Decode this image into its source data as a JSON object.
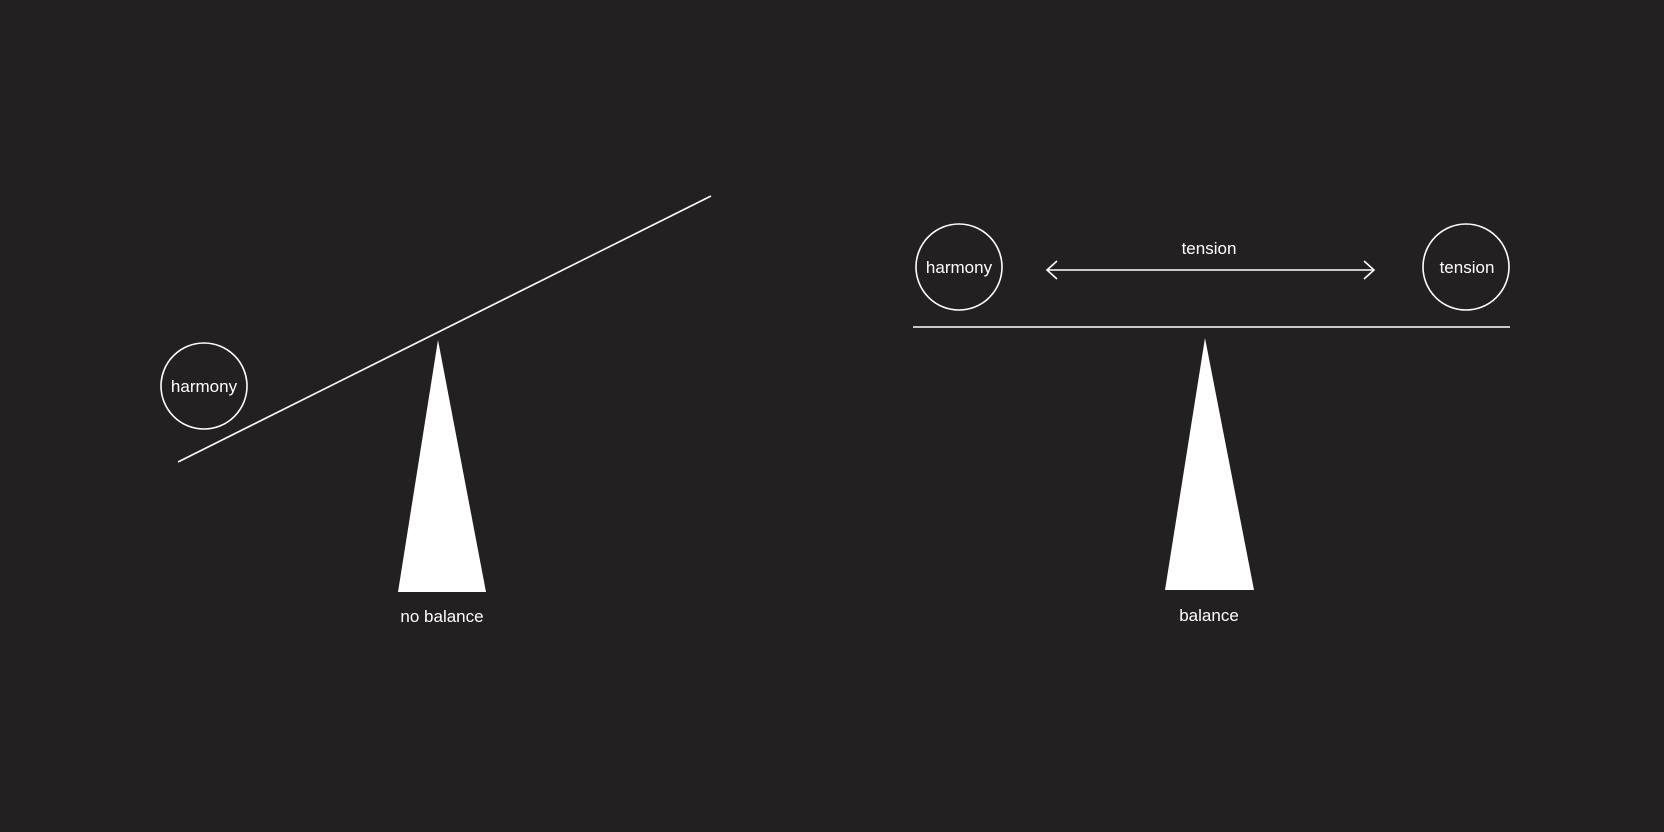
{
  "colors": {
    "background": "#232021",
    "foreground": "#ffffff"
  },
  "left_diagram": {
    "ball_label": "harmony",
    "fulcrum_label": "no balance"
  },
  "right_diagram": {
    "left_ball_label": "harmony",
    "right_ball_label": "tension",
    "arrow_label": "tension",
    "fulcrum_label": "balance"
  }
}
